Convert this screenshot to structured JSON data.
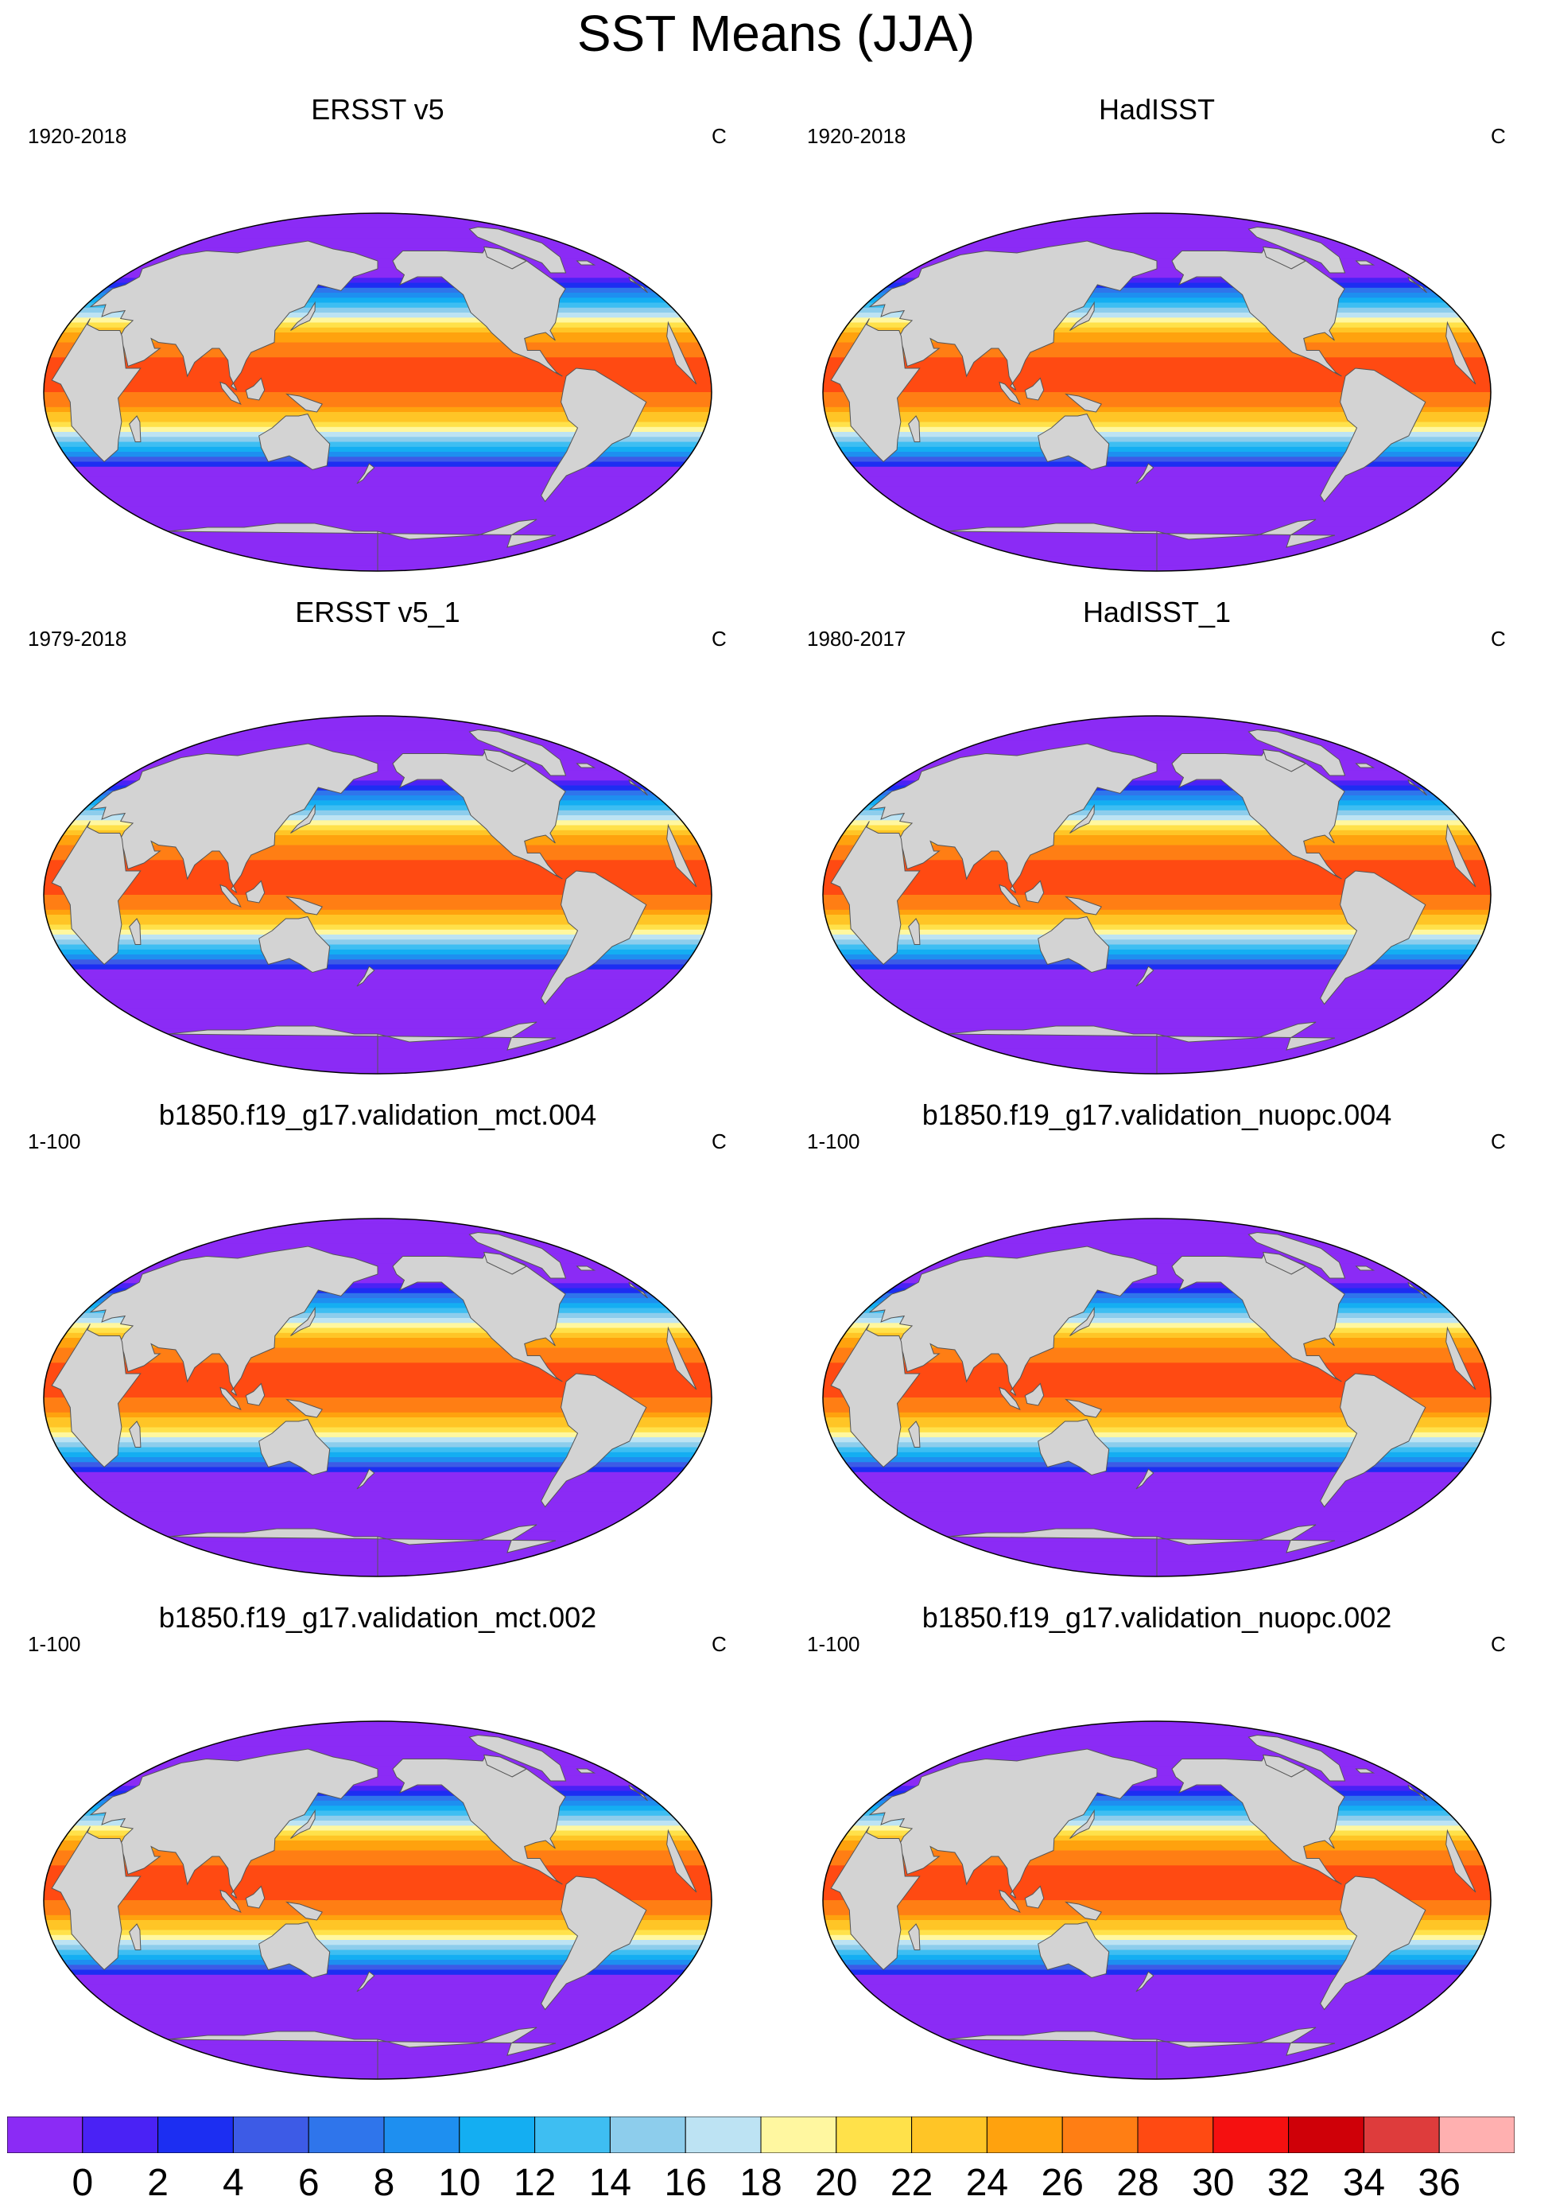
{
  "title": "SST Means (JJA)",
  "panels": [
    {
      "name": "ERSST v5",
      "period": "1920-2018",
      "units": "C"
    },
    {
      "name": "HadISST",
      "period": "1920-2018",
      "units": "C"
    },
    {
      "name": "ERSST v5_1",
      "period": "1979-2018",
      "units": "C"
    },
    {
      "name": "HadISST_1",
      "period": "1980-2017",
      "units": "C"
    },
    {
      "name": "b1850.f19_g17.validation_mct.004",
      "period": "1-100",
      "units": "C"
    },
    {
      "name": "b1850.f19_g17.validation_nuopc.004",
      "period": "1-100",
      "units": "C"
    },
    {
      "name": "b1850.f19_g17.validation_mct.002",
      "period": "1-100",
      "units": "C"
    },
    {
      "name": "b1850.f19_g17.validation_nuopc.002",
      "period": "1-100",
      "units": "C"
    }
  ],
  "colorbar": {
    "labels": [
      "0",
      "2",
      "4",
      "6",
      "8",
      "10",
      "12",
      "14",
      "16",
      "18",
      "20",
      "22",
      "24",
      "26",
      "28",
      "30",
      "32",
      "34",
      "36"
    ],
    "colors": [
      "#8B2BF5",
      "#4A22F5",
      "#1C2EF2",
      "#3D5BE6",
      "#2F75EB",
      "#1E8FF0",
      "#14AEF2",
      "#3EBEF2",
      "#8DCDEC",
      "#BDE3F3",
      "#FFF7A0",
      "#FFE14A",
      "#FFC526",
      "#FFA20E",
      "#FF7E14",
      "#FF4A12",
      "#F51010",
      "#CF0008",
      "#DE3C3C",
      "#FFB0B0"
    ],
    "land_color": "#D3D3D3"
  }
}
